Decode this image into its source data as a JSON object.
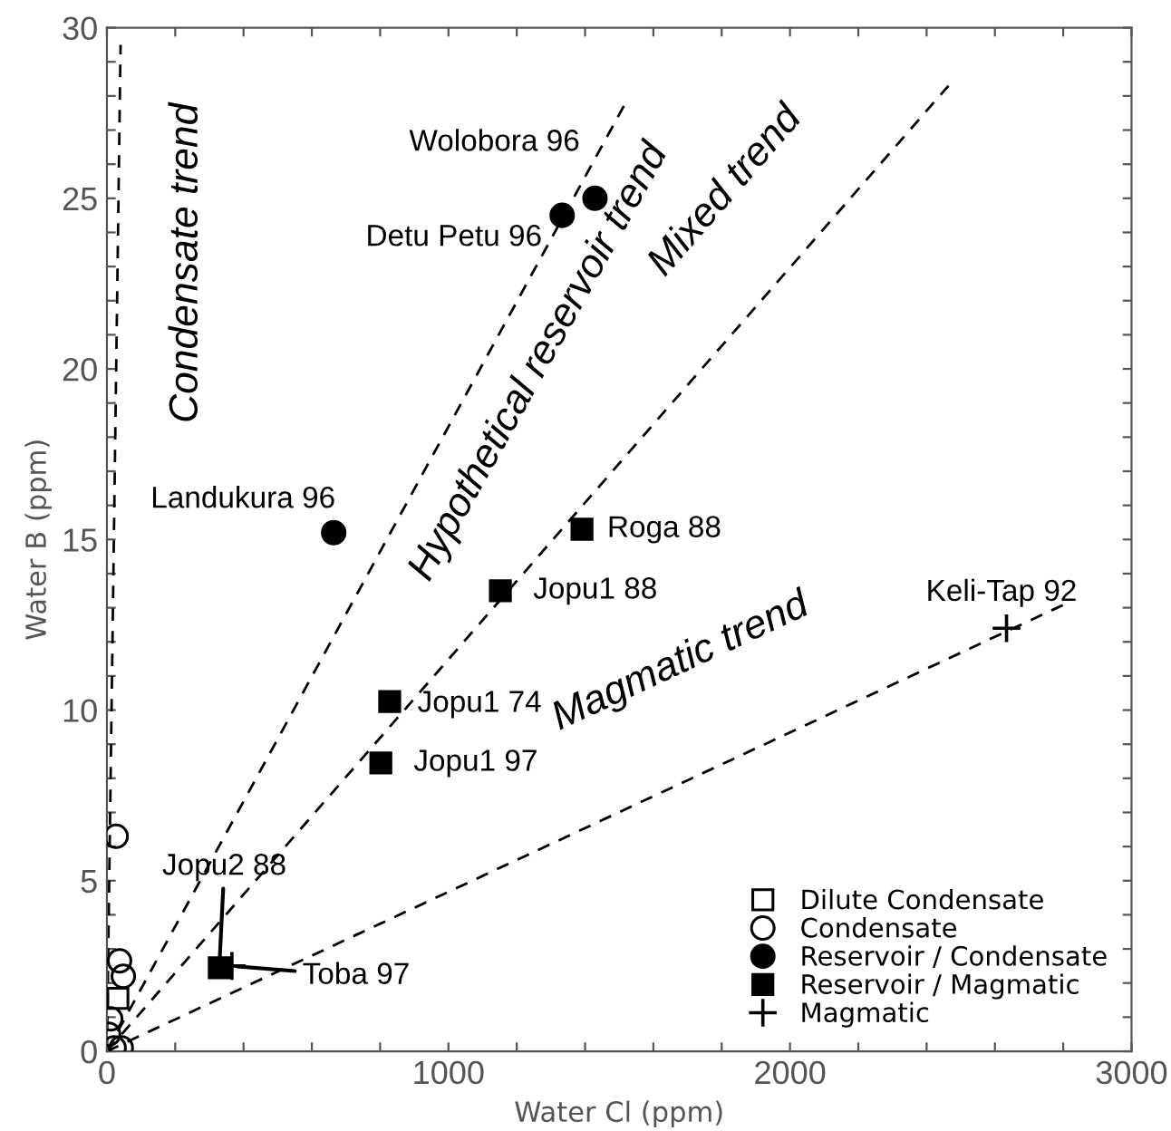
{
  "chart_data": {
    "type": "scatter",
    "xlabel": "Water Cl (ppm)",
    "ylabel": "Water B (ppm)",
    "xlim": [
      0,
      3000
    ],
    "ylim": [
      0,
      30
    ],
    "xticks": [
      0,
      {
        "value": 200,
        "label": null
      },
      {
        "value": 400,
        "label": null
      },
      {
        "value": 600,
        "label": null
      },
      {
        "value": 800,
        "label": null
      },
      1000,
      {
        "value": 1200,
        "label": null
      },
      {
        "value": 1400,
        "label": null
      },
      {
        "value": 1600,
        "label": null
      },
      {
        "value": 1800,
        "label": null
      },
      2000,
      {
        "value": 2200,
        "label": null
      },
      {
        "value": 2400,
        "label": null
      },
      {
        "value": 2600,
        "label": null
      },
      {
        "value": 2800,
        "label": null
      },
      3000
    ],
    "yticks": [
      0,
      {
        "value": 1,
        "label": null
      },
      {
        "value": 2,
        "label": null
      },
      {
        "value": 3,
        "label": null
      },
      {
        "value": 4,
        "label": null
      },
      5,
      {
        "value": 6,
        "label": null
      },
      {
        "value": 7,
        "label": null
      },
      {
        "value": 8,
        "label": null
      },
      {
        "value": 9,
        "label": null
      },
      10,
      {
        "value": 11,
        "label": null
      },
      {
        "value": 12,
        "label": null
      },
      {
        "value": 13,
        "label": null
      },
      {
        "value": 14,
        "label": null
      },
      15,
      {
        "value": 16,
        "label": null
      },
      {
        "value": 17,
        "label": null
      },
      {
        "value": 18,
        "label": null
      },
      {
        "value": 19,
        "label": null
      },
      20,
      {
        "value": 21,
        "label": null
      },
      {
        "value": 22,
        "label": null
      },
      {
        "value": 23,
        "label": null
      },
      {
        "value": 24,
        "label": null
      },
      25,
      {
        "value": 26,
        "label": null
      },
      {
        "value": 27,
        "label": null
      },
      {
        "value": 28,
        "label": null
      },
      {
        "value": 29,
        "label": null
      },
      30
    ],
    "grid": false,
    "legend": "bottom right",
    "series": [
      {
        "name": "Dilute Condensate",
        "color": "#000000",
        "marker": "square",
        "x": [
          32
        ],
        "values": [
          1.55
        ]
      },
      {
        "name": "Condensate",
        "color": "#000000",
        "marker": "circle",
        "x": [
          27,
          37,
          48,
          11,
          21,
          42,
          5
        ],
        "values": [
          6.3,
          2.65,
          2.2,
          0.95,
          0.1,
          0.1,
          0.5
        ]
      },
      {
        "name": "Reservoir / Condensate",
        "color": "#000000",
        "marker": "circle",
        "x": [
          1429,
          1333,
          664
        ],
        "values": [
          25.0,
          24.5,
          15.2
        ]
      },
      {
        "name": "Reservoir / Magmatic",
        "color": "#000000",
        "marker": "square",
        "x": [
          1391,
          1152,
          828,
          802,
          329
        ],
        "values": [
          15.3,
          13.5,
          10.25,
          8.45,
          2.45
        ]
      },
      {
        "name": "Magmatic",
        "color": "#000000",
        "marker": "cross",
        "x": [
          366,
          2634
        ],
        "values": [
          2.5,
          12.4
        ]
      },
      {
        "type": "line",
        "color": "#000000",
        "line_style": "dashed",
        "marker": "none",
        "x": [
          0,
          40
        ],
        "values": [
          0,
          29.5
        ]
      },
      {
        "type": "line",
        "color": "#000000",
        "line_style": "dashed",
        "marker": "none",
        "x": [
          0,
          1524
        ],
        "values": [
          0,
          27.9
        ]
      },
      {
        "type": "line",
        "color": "#000000",
        "line_style": "dashed",
        "marker": "none",
        "x": [
          0,
          2464
        ],
        "values": [
          0,
          28.3
        ]
      },
      {
        "type": "line",
        "color": "#000000",
        "line_style": "dashed",
        "marker": "none",
        "x": [
          0,
          2804
        ],
        "values": [
          0,
          13.1
        ]
      }
    ],
    "annotations": [
      {
        "text": "Wolobora 96",
        "x": 1429,
        "y": 25.0
      },
      {
        "text": "Detu Petu 96",
        "x": 1333,
        "y": 24.5
      },
      {
        "text": "Landukura 96",
        "x": 664,
        "y": 15.2
      },
      {
        "text": "Roga 88",
        "x": 1391,
        "y": 15.3
      },
      {
        "text": "Jopu1 88",
        "x": 1152,
        "y": 13.5
      },
      {
        "text": "Jopu1 74",
        "x": 828,
        "y": 10.25
      },
      {
        "text": "Jopu1 97",
        "x": 802,
        "y": 8.45
      },
      {
        "text": "Jopu2 88",
        "x": 329,
        "y": 2.45
      },
      {
        "text": "Toba 97",
        "x": 366,
        "y": 2.5
      },
      {
        "text": "Keli-Tap 92",
        "x": 2634,
        "y": 12.4
      },
      "Condensate trend",
      "Hypothetical reservoir trend",
      "Mixed trend",
      "Magmatic trend"
    ]
  }
}
